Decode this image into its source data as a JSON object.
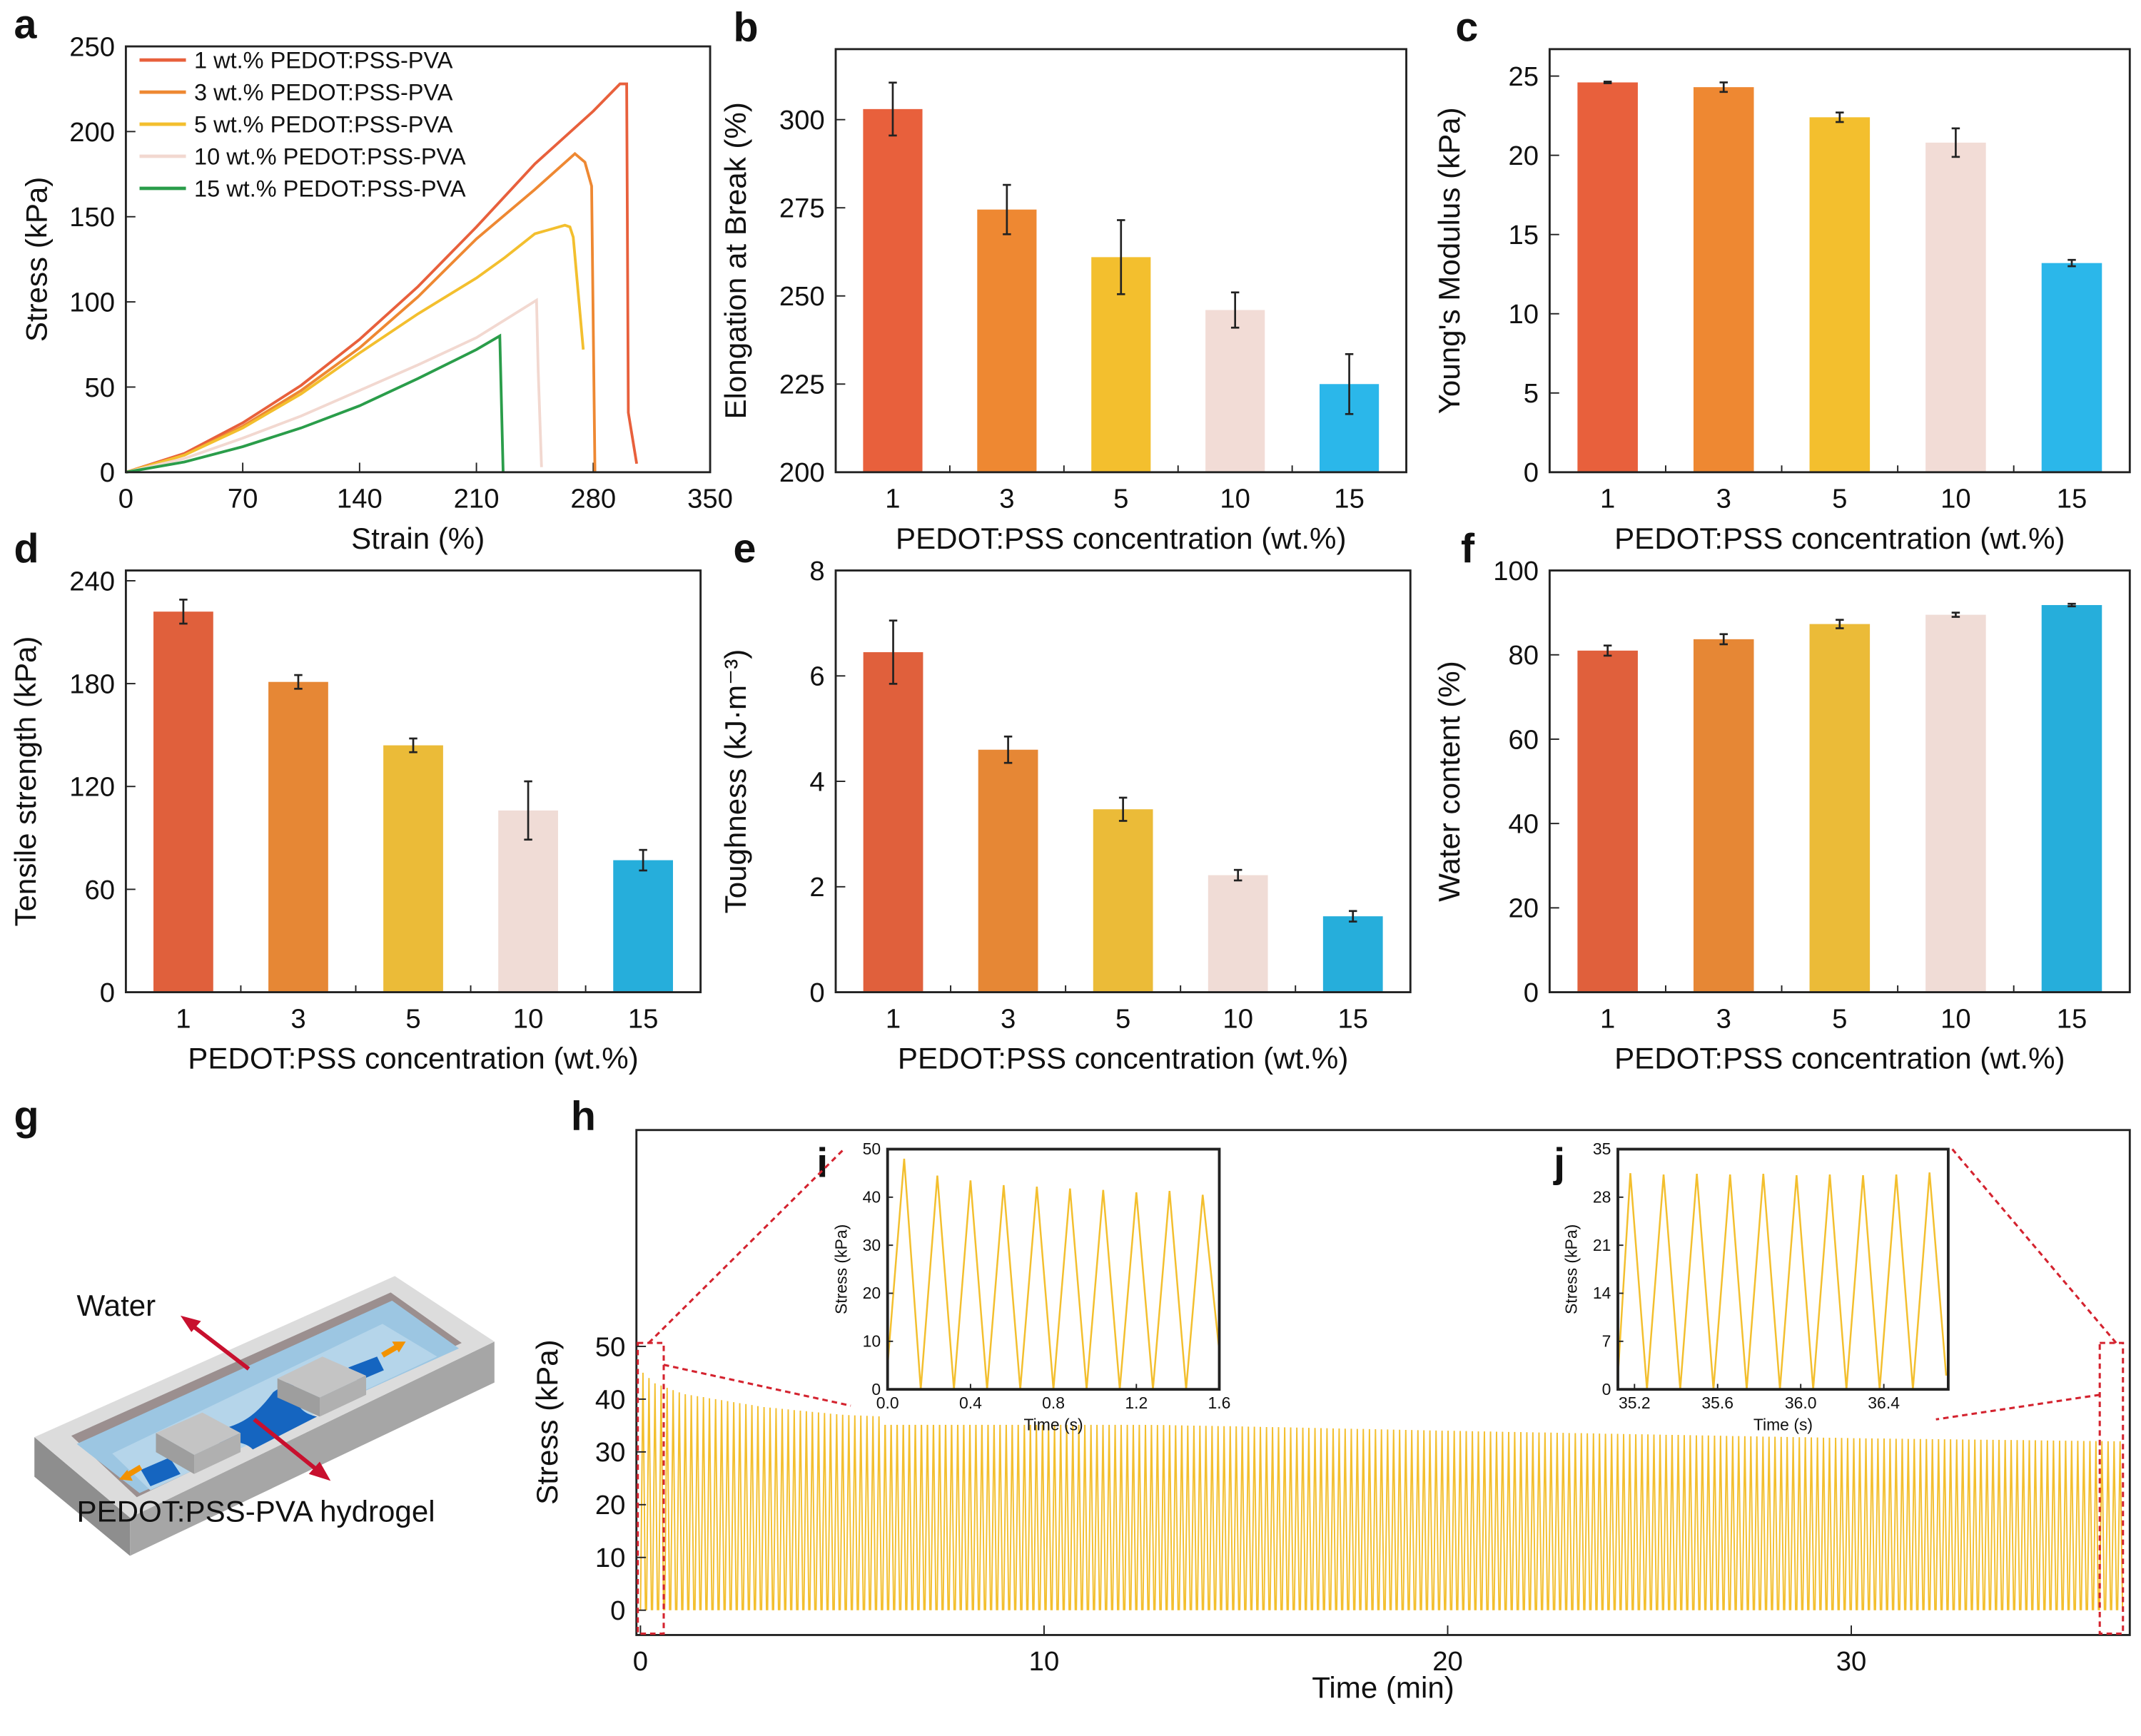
{
  "panel_labels": [
    "a",
    "b",
    "c",
    "d",
    "e",
    "f",
    "g",
    "h",
    "i",
    "j"
  ],
  "illustration": {
    "water_label": "Water",
    "hydrogel_label": "PEDOT:PSS-PVA hydrogel",
    "colors": {
      "tray": "#d9d9d9",
      "water": "#9cc6e2",
      "hydrogel": "#1565c0",
      "clamp": "#bdbdbd",
      "arrow_red": "#c8102e",
      "arrow_orange": "#f39200"
    }
  },
  "chart_data": [
    {
      "id": "a",
      "type": "line",
      "xlabel": "Strain (%)",
      "ylabel": "Stress (kPa)",
      "xlim": [
        0,
        350
      ],
      "ylim": [
        0,
        250
      ],
      "xticks": [
        0,
        70,
        140,
        210,
        280,
        350
      ],
      "yticks": [
        0,
        50,
        100,
        150,
        200,
        250
      ],
      "legend_position": "top-left",
      "series": [
        {
          "name": "1 wt.% PEDOT:PSS-PVA",
          "color": "#e8603c",
          "x": [
            0,
            35,
            70,
            105,
            140,
            175,
            210,
            245,
            280,
            296,
            300,
            301,
            306
          ],
          "y": [
            0,
            11,
            29,
            51,
            78,
            109,
            144,
            181,
            212,
            228,
            228,
            35,
            5
          ]
        },
        {
          "name": "3 wt.% PEDOT:PSS-PVA",
          "color": "#ee8832",
          "x": [
            0,
            35,
            70,
            105,
            140,
            175,
            210,
            245,
            269,
            275,
            279,
            281
          ],
          "y": [
            0,
            10,
            27,
            48,
            73,
            103,
            137,
            166,
            187,
            182,
            168,
            0
          ]
        },
        {
          "name": "5 wt.% PEDOT:PSS-PVA",
          "color": "#f3bf2e",
          "x": [
            0,
            35,
            70,
            105,
            140,
            175,
            210,
            227,
            245,
            263,
            266,
            268,
            274
          ],
          "y": [
            0,
            10,
            26,
            46,
            70,
            93,
            114,
            126,
            140,
            145,
            144,
            138,
            72
          ]
        },
        {
          "name": "10 wt.% PEDOT:PSS-PVA",
          "color": "#f2d8d0",
          "x": [
            0,
            35,
            70,
            105,
            140,
            175,
            210,
            246,
            247,
            249
          ],
          "y": [
            0,
            8,
            20,
            33,
            48,
            63,
            79,
            101,
            60,
            3
          ]
        },
        {
          "name": "15 wt.% PEDOT:PSS-PVA",
          "color": "#2a9d4a",
          "x": [
            0,
            35,
            70,
            105,
            140,
            175,
            210,
            224,
            225,
            226
          ],
          "y": [
            0,
            6,
            15,
            26,
            39,
            55,
            72,
            80,
            40,
            0
          ]
        }
      ]
    },
    {
      "id": "b",
      "type": "bar",
      "xlabel": "PEDOT:PSS concentration (wt.%)",
      "ylabel": "Elongation at Break (%)",
      "categories": [
        "1",
        "3",
        "5",
        "10",
        "15"
      ],
      "values": [
        303,
        274.5,
        261,
        246,
        225
      ],
      "errors": [
        7.5,
        7,
        10.5,
        5,
        8.5
      ],
      "colors": [
        "#e8603c",
        "#ee8832",
        "#f3bf2e",
        "#f2dcd6",
        "#2bb7ea"
      ],
      "ylim": [
        200,
        320
      ],
      "yticks": [
        200,
        225,
        250,
        275,
        300
      ]
    },
    {
      "id": "c",
      "type": "bar",
      "xlabel": "PEDOT:PSS concentration (wt.%)",
      "ylabel": "Young's Modulus (kPa)",
      "categories": [
        "1",
        "3",
        "5",
        "10",
        "15"
      ],
      "values": [
        24.6,
        24.3,
        22.4,
        20.8,
        13.2
      ],
      "errors": [
        0.05,
        0.3,
        0.3,
        0.9,
        0.2
      ],
      "colors": [
        "#e8603c",
        "#ee8832",
        "#f3bf2e",
        "#f2dcd6",
        "#2bb7ea"
      ],
      "ylim": [
        0,
        26.7
      ],
      "yticks": [
        0,
        5,
        10,
        15,
        20,
        25
      ]
    },
    {
      "id": "d",
      "type": "bar",
      "xlabel": "PEDOT:PSS concentration (wt.%)",
      "ylabel": "Tensile strength (kPa)",
      "categories": [
        "1",
        "3",
        "5",
        "10",
        "15"
      ],
      "values": [
        222,
        181,
        144,
        106,
        77
      ],
      "errors": [
        7,
        4,
        4,
        17,
        6
      ],
      "colors": [
        "#e0603c",
        "#e68735",
        "#ebbb38",
        "#f0dcd6",
        "#26aedb"
      ],
      "ylim": [
        0,
        246
      ],
      "yticks": [
        0,
        60,
        120,
        180,
        240
      ]
    },
    {
      "id": "e",
      "type": "bar",
      "xlabel": "PEDOT:PSS concentration (wt.%)",
      "ylabel": "Toughness (kJ·m⁻³)",
      "categories": [
        "1",
        "3",
        "5",
        "10",
        "15"
      ],
      "values": [
        6.45,
        4.6,
        3.47,
        2.22,
        1.44
      ],
      "errors": [
        0.6,
        0.25,
        0.22,
        0.1,
        0.1
      ],
      "colors": [
        "#e0603c",
        "#e68735",
        "#ebbb38",
        "#f0dcd6",
        "#26aedb"
      ],
      "ylim": [
        0,
        8
      ],
      "yticks": [
        0,
        2,
        4,
        6,
        8
      ]
    },
    {
      "id": "f",
      "type": "bar",
      "xlabel": "PEDOT:PSS concentration (wt.%)",
      "ylabel": "Water content (%)",
      "categories": [
        "1",
        "3",
        "5",
        "10",
        "15"
      ],
      "values": [
        81,
        83.7,
        87.3,
        89.5,
        91.8
      ],
      "errors": [
        1.2,
        1.2,
        1.0,
        0.5,
        0.3
      ],
      "colors": [
        "#e0603c",
        "#e68735",
        "#ebbb38",
        "#f0dcd6",
        "#26aedb"
      ],
      "ylim": [
        0,
        100
      ],
      "yticks": [
        0,
        20,
        40,
        60,
        80,
        100
      ]
    },
    {
      "id": "h",
      "type": "line",
      "xlabel": "Time (min)",
      "ylabel": "Stress (kPa)",
      "xlim": [
        -0.1,
        36.9
      ],
      "ylim": [
        -4.7,
        91
      ],
      "xticks": [
        0,
        10,
        20,
        30
      ],
      "yticks": [
        0,
        10,
        20,
        30,
        40,
        50
      ],
      "color": "#f3bf2e",
      "peak_envelope": {
        "x": [
          0,
          0.3,
          1,
          3,
          5,
          10,
          15,
          20,
          25,
          30,
          36.7
        ],
        "y": [
          45,
          43,
          41,
          38.5,
          37,
          35.5,
          34.8,
          34,
          33.3,
          32.6,
          32
        ]
      },
      "min_stress": 0
    },
    {
      "id": "i",
      "type": "line",
      "xlabel": "Time (s)",
      "ylabel": "Stress (kPa)",
      "xlim": [
        0,
        1.6
      ],
      "ylim": [
        0,
        50
      ],
      "xticks": [
        "0.0",
        "0.4",
        "0.8",
        "1.2",
        "1.6"
      ],
      "yticks": [
        0,
        10,
        20,
        30,
        40,
        50
      ],
      "color": "#f3bf2e",
      "x": [
        0,
        0.08,
        0.16,
        0.24,
        0.32,
        0.4,
        0.48,
        0.56,
        0.64,
        0.72,
        0.8,
        0.88,
        0.96,
        1.04,
        1.12,
        1.2,
        1.28,
        1.36,
        1.44,
        1.52,
        1.6
      ],
      "y": [
        5,
        48,
        0,
        44.5,
        0,
        43.5,
        0,
        42.5,
        0,
        42.2,
        0,
        41.8,
        0,
        41.5,
        0,
        41,
        0,
        41.3,
        0,
        40.5,
        8
      ]
    },
    {
      "id": "j",
      "type": "line",
      "xlabel": "Time (s)",
      "ylabel": "Stress (kPa)",
      "xlim": [
        35.12,
        36.71
      ],
      "ylim": [
        0,
        35
      ],
      "xticks": [
        "35.2",
        "35.6",
        "36.0",
        "36.4"
      ],
      "yticks": [
        0,
        7,
        14,
        21,
        28,
        35
      ],
      "color": "#f3bf2e",
      "x": [
        35.12,
        35.18,
        35.26,
        35.34,
        35.42,
        35.5,
        35.58,
        35.66,
        35.74,
        35.82,
        35.9,
        35.98,
        36.06,
        36.14,
        36.22,
        36.3,
        36.38,
        36.46,
        36.54,
        36.62,
        36.7
      ],
      "y": [
        2,
        31.5,
        0,
        31.3,
        0,
        31.4,
        0,
        31.3,
        0,
        31.4,
        0,
        31.2,
        0,
        31.3,
        0,
        31.2,
        0,
        31.3,
        0,
        31.6,
        2
      ]
    }
  ]
}
